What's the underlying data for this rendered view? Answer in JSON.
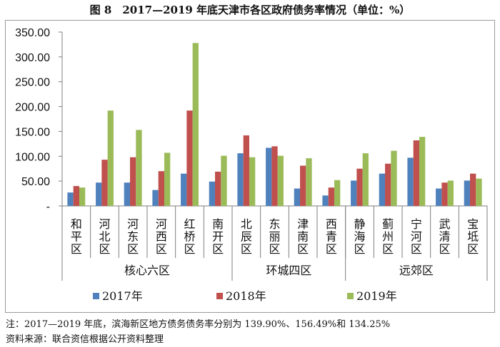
{
  "title": "图 8　2017—2019 年底天津市各区政府债务率情况（单位：%）",
  "chart_data": {
    "type": "bar",
    "ylim": [
      0,
      350
    ],
    "yticks": [
      "350.00",
      "300.00",
      "250.00",
      "200.00",
      "150.00",
      "100.00",
      "50.00",
      "-"
    ],
    "ytick_values": [
      350,
      300,
      250,
      200,
      150,
      100,
      50,
      0
    ],
    "categories": [
      "和平区",
      "河北区",
      "河东区",
      "河西区",
      "红桥区",
      "南开区",
      "北辰区",
      "东丽区",
      "津南区",
      "西青区",
      "静海区",
      "蓟州区",
      "宁河区",
      "武清区",
      "宝坻区"
    ],
    "groups": [
      {
        "label": "核心六区",
        "count": 6
      },
      {
        "label": "环城四区",
        "count": 4
      },
      {
        "label": "远郊区",
        "count": 5
      }
    ],
    "series": [
      {
        "name": "2017年",
        "color": "#4f81bd",
        "values": [
          27,
          47,
          47,
          32,
          65,
          49,
          106,
          117,
          35,
          21,
          51,
          65,
          97,
          35,
          51
        ]
      },
      {
        "name": "2018年",
        "color": "#c0504d",
        "values": [
          40,
          93,
          98,
          70,
          192,
          69,
          142,
          120,
          81,
          37,
          75,
          85,
          132,
          47,
          65
        ]
      },
      {
        "name": "2019年",
        "color": "#9bbb59",
        "values": [
          37,
          192,
          153,
          107,
          328,
          101,
          98,
          101,
          96,
          52,
          106,
          111,
          139,
          51,
          55
        ]
      }
    ],
    "legend_position": "bottom"
  },
  "notes": {
    "note1": "注：2017—2019 年底，滨海新区地方债务债务率分别为 139.90%、156.49%和 134.25%",
    "note2": "资料来源：联合资信根据公开资料整理"
  }
}
